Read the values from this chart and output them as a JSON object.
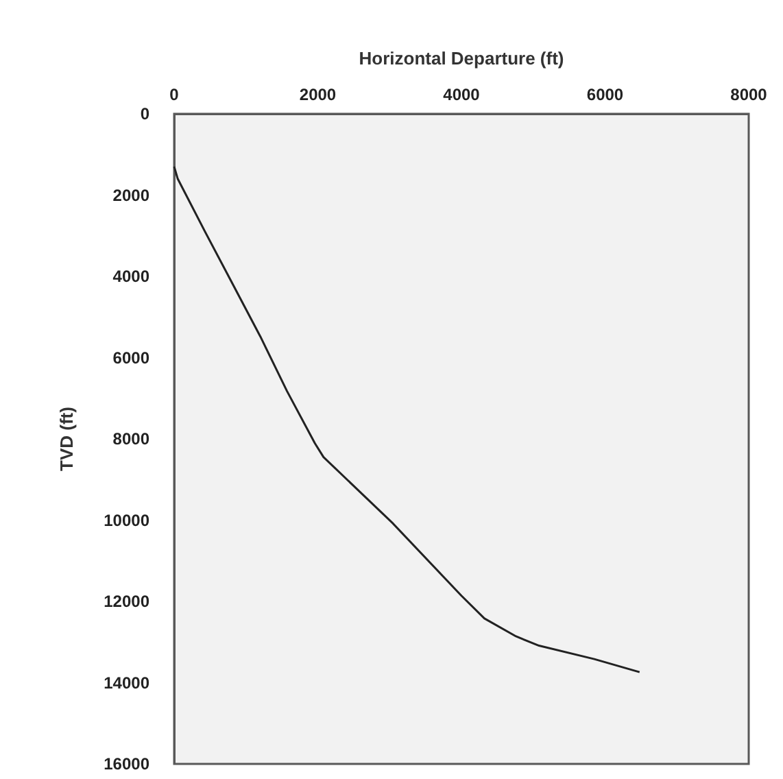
{
  "chart_data": {
    "type": "line",
    "xlabel": "Horizontal Departure (ft)",
    "ylabel": "TVD (ft)",
    "xlim": [
      0,
      8000
    ],
    "xticks": [
      0,
      2000,
      4000,
      6000,
      8000
    ],
    "ylim": [
      16000,
      0
    ],
    "yticks": [
      0,
      2000,
      4000,
      6000,
      8000,
      10000,
      12000,
      14000,
      16000
    ],
    "grid": false,
    "marker": "none",
    "line_style": "solid",
    "series": [
      {
        "color": "#222222",
        "x": [
          0,
          50,
          430,
          800,
          1200,
          1570,
          1960,
          2080,
          3040,
          4000,
          4320,
          4760,
          5080,
          5850,
          6480
        ],
        "values": [
          1300,
          1600,
          2900,
          4140,
          5480,
          6820,
          8110,
          8450,
          10070,
          11860,
          12420,
          12860,
          13090,
          13420,
          13740
        ]
      }
    ]
  }
}
